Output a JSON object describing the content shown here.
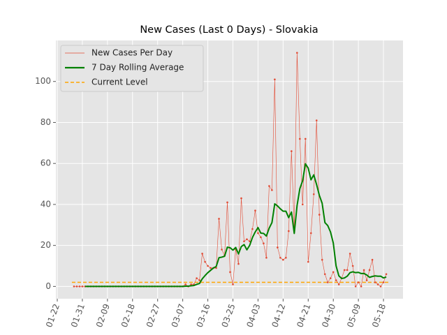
{
  "chart_data": {
    "type": "line",
    "title": "New Cases (Last 0 Days) - Slovakia",
    "x": [
      6,
      7,
      8,
      9,
      10,
      11,
      12,
      13,
      14,
      15,
      16,
      17,
      18,
      19,
      20,
      21,
      22,
      23,
      24,
      25,
      26,
      27,
      28,
      29,
      30,
      31,
      32,
      33,
      34,
      35,
      36,
      37,
      38,
      39,
      40,
      41,
      42,
      43,
      44,
      45,
      46,
      47,
      48,
      49,
      50,
      51,
      52,
      53,
      54,
      55,
      56,
      57,
      58,
      59,
      60,
      61,
      62,
      63,
      64,
      65,
      66,
      67,
      68,
      69,
      70,
      71,
      72,
      73,
      74,
      75,
      76,
      77,
      78,
      79,
      80,
      81,
      82,
      83,
      84,
      85,
      86,
      87,
      88,
      89,
      90,
      91,
      92,
      93,
      94,
      95,
      96,
      97,
      98,
      99,
      100,
      101,
      102,
      103,
      104,
      105,
      106,
      107,
      108,
      109,
      110,
      111,
      112,
      113,
      114,
      115,
      116,
      117,
      118
    ],
    "series": [
      {
        "name": "New Cases Per Day",
        "color": "#e24a33",
        "markers": true,
        "values": [
          0,
          0,
          0,
          0,
          0,
          0,
          0,
          0,
          0,
          0,
          0,
          0,
          0,
          0,
          0,
          0,
          0,
          0,
          0,
          0,
          0,
          0,
          0,
          0,
          0,
          0,
          0,
          0,
          0,
          0,
          0,
          0,
          0,
          0,
          0,
          0,
          0,
          0,
          0,
          0,
          1,
          0,
          1,
          1,
          4,
          3,
          16,
          12,
          10,
          9,
          9,
          9,
          33,
          18,
          15,
          41,
          7,
          1,
          18,
          11,
          43,
          22,
          23,
          22,
          28,
          37,
          26,
          24,
          21,
          14,
          49,
          47,
          101,
          19,
          14,
          13,
          14,
          27,
          66,
          28,
          114,
          72,
          40,
          72,
          12,
          26,
          45,
          81,
          35,
          13,
          6,
          2,
          4,
          7,
          3,
          1,
          4,
          8,
          8,
          16,
          10,
          0,
          2,
          0,
          8,
          3,
          8,
          13,
          2,
          1,
          0,
          2,
          6
        ]
      },
      {
        "name": "7 Day Rolling Average",
        "color": "#008000",
        "markers": false,
        "values": [
          null,
          null,
          null,
          null,
          0,
          0,
          0,
          0,
          0,
          0,
          0,
          0,
          0,
          0,
          0,
          0,
          0,
          0,
          0,
          0,
          0,
          0,
          0,
          0,
          0,
          0,
          0,
          0,
          0,
          0,
          0,
          0,
          0,
          0,
          0,
          0,
          0,
          0,
          0,
          0,
          0.14,
          0.14,
          0.29,
          0.43,
          1,
          1.43,
          3.71,
          5.29,
          6.71,
          7.86,
          9,
          9.71,
          14,
          14.29,
          14.71,
          19.14,
          18.86,
          17.71,
          19,
          15.86,
          19.43,
          20.43,
          17.86,
          20,
          23.86,
          26.57,
          28.71,
          26,
          25.86,
          24.57,
          28.43,
          31.14,
          40.29,
          39.29,
          37.86,
          36.71,
          36.71,
          33.57,
          36.29,
          25.86,
          39.43,
          47.71,
          51.57,
          59.86,
          57.71,
          52,
          54.43,
          49.71,
          44.43,
          40.57,
          31.14,
          29.71,
          26.57,
          21.14,
          10,
          5.14,
          3.86,
          4.14,
          5,
          6.71,
          7.14,
          6.71,
          6.86,
          6.29,
          6.29,
          5.57,
          4.43,
          4.86,
          5.14,
          5,
          5,
          4.14,
          4.57
        ]
      }
    ],
    "current_level": {
      "name": "Current Level",
      "color": "#ffa500",
      "value": 2
    },
    "xlim": [
      -0.5,
      124
    ],
    "xticks": [
      {
        "value": 0,
        "label": "01-22"
      },
      {
        "value": 9,
        "label": "01-31"
      },
      {
        "value": 18,
        "label": "02-09"
      },
      {
        "value": 27,
        "label": "02-18"
      },
      {
        "value": 36,
        "label": "02-27"
      },
      {
        "value": 45,
        "label": "03-07"
      },
      {
        "value": 54,
        "label": "03-16"
      },
      {
        "value": 63,
        "label": "03-25"
      },
      {
        "value": 72,
        "label": "04-03"
      },
      {
        "value": 81,
        "label": "04-12"
      },
      {
        "value": 90,
        "label": "04-21"
      },
      {
        "value": 99,
        "label": "04-30"
      },
      {
        "value": 108,
        "label": "05-09"
      },
      {
        "value": 117,
        "label": "05-18"
      }
    ],
    "ylim": [
      -6,
      120
    ],
    "yticks": [
      0,
      20,
      40,
      60,
      80,
      100
    ],
    "grid": true,
    "legend": "upper left"
  }
}
